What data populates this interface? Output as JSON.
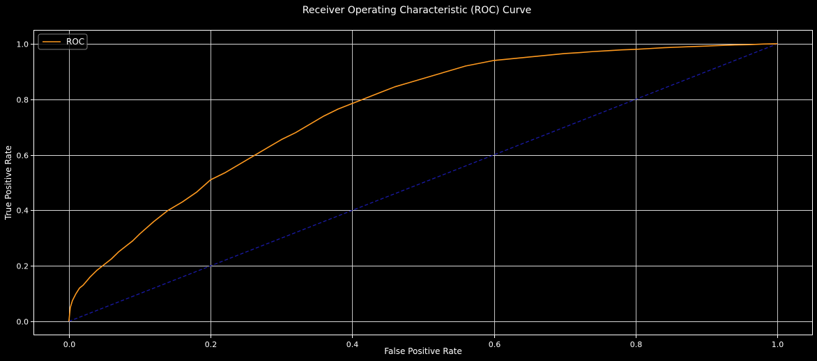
{
  "chart_data": {
    "type": "line",
    "title": "Receiver Operating Characteristic (ROC) Curve",
    "xlabel": "False Positive Rate",
    "ylabel": "True Positive Rate",
    "xlim": [
      -0.05,
      1.05
    ],
    "ylim": [
      -0.05,
      1.05
    ],
    "xticks": [
      0.0,
      0.2,
      0.4,
      0.6,
      0.8,
      1.0
    ],
    "xtick_labels": [
      "0.0",
      "0.2",
      "0.4",
      "0.6",
      "0.8",
      "1.0"
    ],
    "yticks": [
      0.0,
      0.2,
      0.4,
      0.6,
      0.8,
      1.0
    ],
    "ytick_labels": [
      "0.0",
      "0.2",
      "0.4",
      "0.6",
      "0.8",
      "1.0"
    ],
    "grid": true,
    "legend_position": "top-left",
    "background_color": "#000000",
    "series": [
      {
        "name": "ROC",
        "color": "#ff9a1f",
        "style": "solid",
        "in_legend": true,
        "x": [
          0.0,
          0.002,
          0.005,
          0.01,
          0.015,
          0.02,
          0.03,
          0.04,
          0.05,
          0.06,
          0.07,
          0.08,
          0.09,
          0.1,
          0.12,
          0.14,
          0.16,
          0.18,
          0.2,
          0.22,
          0.24,
          0.26,
          0.28,
          0.3,
          0.32,
          0.34,
          0.36,
          0.38,
          0.4,
          0.42,
          0.44,
          0.46,
          0.48,
          0.5,
          0.52,
          0.54,
          0.56,
          0.58,
          0.6,
          0.62,
          0.64,
          0.66,
          0.68,
          0.7,
          0.72,
          0.74,
          0.76,
          0.78,
          0.8,
          0.82,
          0.84,
          0.86,
          0.88,
          0.9,
          0.92,
          0.94,
          0.96,
          0.98,
          1.0
        ],
        "y": [
          0.0,
          0.05,
          0.075,
          0.1,
          0.12,
          0.13,
          0.16,
          0.185,
          0.205,
          0.225,
          0.25,
          0.27,
          0.29,
          0.315,
          0.36,
          0.4,
          0.43,
          0.465,
          0.51,
          0.535,
          0.565,
          0.595,
          0.625,
          0.655,
          0.68,
          0.71,
          0.74,
          0.765,
          0.785,
          0.805,
          0.825,
          0.845,
          0.86,
          0.875,
          0.89,
          0.905,
          0.92,
          0.93,
          0.94,
          0.945,
          0.95,
          0.955,
          0.96,
          0.965,
          0.968,
          0.972,
          0.975,
          0.978,
          0.98,
          0.983,
          0.986,
          0.988,
          0.99,
          0.992,
          0.994,
          0.996,
          0.997,
          0.999,
          1.0
        ]
      },
      {
        "name": "",
        "color": "#1a1aa8",
        "style": "dashed",
        "in_legend": false,
        "x": [
          0.0,
          1.0
        ],
        "y": [
          0.0,
          1.0
        ]
      }
    ]
  }
}
